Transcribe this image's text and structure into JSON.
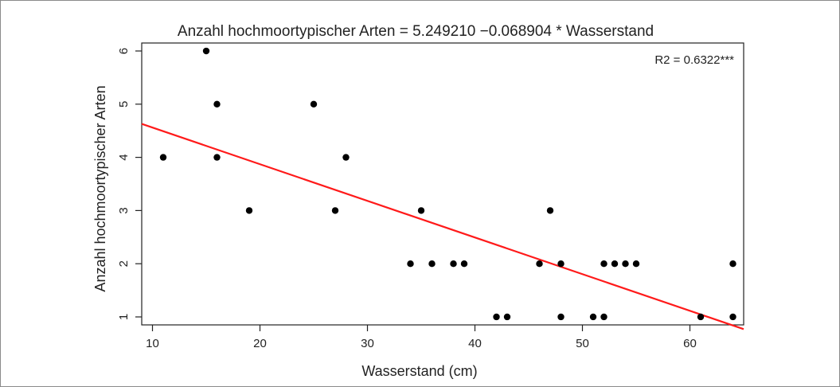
{
  "chart_data": {
    "type": "scatter",
    "title": "Anzahl hochmoortypischer Arten = 5.249210 −0.068904 * Wasserstand",
    "xlabel": "Wasserstand (cm)",
    "ylabel": "Anzahl hochmoortypischer Arten",
    "annotation": "R2 =   0.6322***",
    "xlim": [
      9,
      65
    ],
    "ylim": [
      0.85,
      6.15
    ],
    "xticks": [
      10,
      20,
      30,
      40,
      50,
      60
    ],
    "yticks": [
      1,
      2,
      3,
      4,
      5,
      6
    ],
    "grid": false,
    "series": [
      {
        "points": [
          {
            "x": 11,
            "y": 4
          },
          {
            "x": 15,
            "y": 6
          },
          {
            "x": 16,
            "y": 5
          },
          {
            "x": 16,
            "y": 4
          },
          {
            "x": 19,
            "y": 3
          },
          {
            "x": 25,
            "y": 5
          },
          {
            "x": 27,
            "y": 3
          },
          {
            "x": 28,
            "y": 4
          },
          {
            "x": 34,
            "y": 2
          },
          {
            "x": 35,
            "y": 3
          },
          {
            "x": 36,
            "y": 2
          },
          {
            "x": 38,
            "y": 2
          },
          {
            "x": 39,
            "y": 2
          },
          {
            "x": 42,
            "y": 1
          },
          {
            "x": 43,
            "y": 1
          },
          {
            "x": 46,
            "y": 2
          },
          {
            "x": 47,
            "y": 3
          },
          {
            "x": 48,
            "y": 2
          },
          {
            "x": 48,
            "y": 1
          },
          {
            "x": 51,
            "y": 1
          },
          {
            "x": 52,
            "y": 2
          },
          {
            "x": 52,
            "y": 1
          },
          {
            "x": 53,
            "y": 2
          },
          {
            "x": 54,
            "y": 2
          },
          {
            "x": 55,
            "y": 2
          },
          {
            "x": 61,
            "y": 1
          },
          {
            "x": 64,
            "y": 2
          },
          {
            "x": 64,
            "y": 1
          }
        ],
        "color": "#000000"
      }
    ],
    "regression": {
      "intercept": 5.24921,
      "slope": -0.068904,
      "color": "#ff1a1a"
    }
  }
}
